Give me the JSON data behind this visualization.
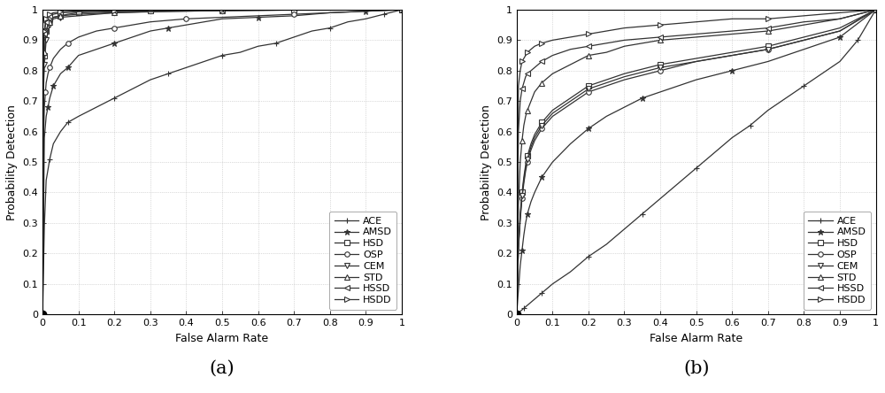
{
  "labels": [
    "ACE",
    "AMSD",
    "HSD",
    "OSP",
    "CEM",
    "STD",
    "HSSD",
    "HSDD"
  ],
  "markers": [
    "+",
    "*",
    "s",
    "o",
    "v",
    "^",
    "<",
    ">"
  ],
  "color": "#333333",
  "xlabel": "False Alarm Rate",
  "ylabel": "Probability Detection",
  "subplot_labels": [
    "(a)",
    "(b)"
  ],
  "figure_size": [
    10.0,
    4.44
  ],
  "dpi": 100,
  "plot_a": {
    "ACE": {
      "x": [
        0,
        0.005,
        0.01,
        0.02,
        0.03,
        0.05,
        0.07,
        0.1,
        0.15,
        0.2,
        0.25,
        0.3,
        0.35,
        0.4,
        0.45,
        0.5,
        0.55,
        0.6,
        0.65,
        0.7,
        0.75,
        0.8,
        0.85,
        0.9,
        0.95,
        1.0
      ],
      "y": [
        0,
        0.29,
        0.44,
        0.51,
        0.56,
        0.6,
        0.63,
        0.65,
        0.68,
        0.71,
        0.74,
        0.77,
        0.79,
        0.81,
        0.83,
        0.85,
        0.86,
        0.88,
        0.89,
        0.91,
        0.93,
        0.94,
        0.96,
        0.97,
        0.985,
        1.0
      ]
    },
    "AMSD": {
      "x": [
        0,
        0.005,
        0.01,
        0.015,
        0.02,
        0.025,
        0.03,
        0.04,
        0.05,
        0.07,
        0.1,
        0.15,
        0.2,
        0.25,
        0.3,
        0.35,
        0.4,
        0.5,
        0.6,
        0.7,
        0.8,
        0.9,
        1.0
      ],
      "y": [
        0,
        0.58,
        0.65,
        0.68,
        0.71,
        0.73,
        0.75,
        0.77,
        0.79,
        0.81,
        0.85,
        0.87,
        0.89,
        0.91,
        0.93,
        0.94,
        0.95,
        0.97,
        0.975,
        0.98,
        0.99,
        0.995,
        1.0
      ]
    },
    "HSD": {
      "x": [
        0,
        0.003,
        0.005,
        0.008,
        0.01,
        0.015,
        0.02,
        0.03,
        0.05,
        0.07,
        0.1,
        0.2,
        0.3,
        0.5,
        0.7,
        1.0
      ],
      "y": [
        0,
        0.78,
        0.85,
        0.9,
        0.93,
        0.95,
        0.97,
        0.975,
        0.98,
        0.985,
        0.99,
        0.993,
        0.996,
        0.998,
        0.999,
        1.0
      ]
    },
    "OSP": {
      "x": [
        0,
        0.003,
        0.005,
        0.008,
        0.01,
        0.015,
        0.02,
        0.03,
        0.05,
        0.07,
        0.1,
        0.15,
        0.2,
        0.25,
        0.3,
        0.4,
        0.5,
        0.6,
        0.7,
        0.8,
        0.9,
        1.0
      ],
      "y": [
        0,
        0.59,
        0.68,
        0.73,
        0.76,
        0.79,
        0.81,
        0.84,
        0.87,
        0.89,
        0.91,
        0.93,
        0.94,
        0.95,
        0.96,
        0.97,
        0.975,
        0.98,
        0.985,
        0.99,
        0.995,
        1.0
      ]
    },
    "CEM": {
      "x": [
        0,
        0.003,
        0.005,
        0.008,
        0.01,
        0.015,
        0.02,
        0.03,
        0.05,
        0.1,
        0.2,
        0.3,
        0.5,
        0.7,
        1.0
      ],
      "y": [
        0,
        0.75,
        0.82,
        0.87,
        0.9,
        0.93,
        0.95,
        0.97,
        0.975,
        0.98,
        0.99,
        0.993,
        0.997,
        0.999,
        1.0
      ]
    },
    "STD": {
      "x": [
        0,
        0.003,
        0.005,
        0.008,
        0.01,
        0.015,
        0.02,
        0.03,
        0.05,
        0.1,
        0.2,
        0.3,
        0.5,
        0.7,
        1.0
      ],
      "y": [
        0,
        0.79,
        0.86,
        0.9,
        0.93,
        0.95,
        0.96,
        0.975,
        0.98,
        0.985,
        0.99,
        0.994,
        0.997,
        0.999,
        1.0
      ]
    },
    "HSSD": {
      "x": [
        0,
        0.003,
        0.005,
        0.008,
        0.01,
        0.015,
        0.02,
        0.03,
        0.05,
        0.1,
        0.2,
        0.3,
        0.5,
        0.7,
        1.0
      ],
      "y": [
        0,
        0.87,
        0.92,
        0.95,
        0.96,
        0.975,
        0.98,
        0.985,
        0.99,
        0.993,
        0.996,
        0.998,
        0.999,
        0.9995,
        1.0
      ]
    },
    "HSDD": {
      "x": [
        0,
        0.003,
        0.005,
        0.008,
        0.01,
        0.015,
        0.02,
        0.03,
        0.05,
        0.1,
        0.2,
        0.3,
        0.5,
        0.7,
        1.0
      ],
      "y": [
        0,
        0.89,
        0.93,
        0.96,
        0.97,
        0.98,
        0.985,
        0.99,
        0.993,
        0.996,
        0.998,
        0.999,
        0.9995,
        0.9998,
        1.0
      ]
    }
  },
  "plot_b": {
    "ACE": {
      "x": [
        0,
        0.005,
        0.01,
        0.02,
        0.03,
        0.05,
        0.07,
        0.1,
        0.15,
        0.2,
        0.25,
        0.3,
        0.35,
        0.4,
        0.45,
        0.5,
        0.55,
        0.6,
        0.65,
        0.7,
        0.75,
        0.8,
        0.85,
        0.9,
        0.95,
        1.0
      ],
      "y": [
        0,
        0.005,
        0.01,
        0.02,
        0.03,
        0.05,
        0.07,
        0.1,
        0.14,
        0.19,
        0.23,
        0.28,
        0.33,
        0.38,
        0.43,
        0.48,
        0.53,
        0.58,
        0.62,
        0.67,
        0.71,
        0.75,
        0.79,
        0.83,
        0.9,
        1.0
      ]
    },
    "AMSD": {
      "x": [
        0,
        0.005,
        0.01,
        0.015,
        0.02,
        0.025,
        0.03,
        0.04,
        0.05,
        0.07,
        0.1,
        0.15,
        0.2,
        0.25,
        0.3,
        0.35,
        0.4,
        0.5,
        0.6,
        0.7,
        0.8,
        0.9,
        1.0
      ],
      "y": [
        0,
        0.08,
        0.16,
        0.21,
        0.26,
        0.3,
        0.33,
        0.37,
        0.4,
        0.45,
        0.5,
        0.56,
        0.61,
        0.65,
        0.68,
        0.71,
        0.73,
        0.77,
        0.8,
        0.83,
        0.87,
        0.91,
        1.0
      ]
    },
    "HSD": {
      "x": [
        0,
        0.005,
        0.01,
        0.015,
        0.02,
        0.025,
        0.03,
        0.04,
        0.05,
        0.07,
        0.1,
        0.15,
        0.2,
        0.25,
        0.3,
        0.4,
        0.5,
        0.6,
        0.7,
        0.8,
        0.9,
        1.0
      ],
      "y": [
        0,
        0.22,
        0.33,
        0.4,
        0.45,
        0.49,
        0.52,
        0.56,
        0.59,
        0.63,
        0.67,
        0.71,
        0.75,
        0.77,
        0.79,
        0.82,
        0.84,
        0.86,
        0.88,
        0.91,
        0.94,
        1.0
      ]
    },
    "OSP": {
      "x": [
        0,
        0.005,
        0.01,
        0.015,
        0.02,
        0.025,
        0.03,
        0.04,
        0.05,
        0.07,
        0.1,
        0.15,
        0.2,
        0.25,
        0.3,
        0.4,
        0.5,
        0.6,
        0.7,
        0.8,
        0.9,
        1.0
      ],
      "y": [
        0,
        0.21,
        0.31,
        0.38,
        0.43,
        0.47,
        0.5,
        0.54,
        0.57,
        0.61,
        0.65,
        0.69,
        0.73,
        0.75,
        0.77,
        0.8,
        0.83,
        0.85,
        0.87,
        0.9,
        0.93,
        1.0
      ]
    },
    "CEM": {
      "x": [
        0,
        0.005,
        0.01,
        0.015,
        0.02,
        0.025,
        0.03,
        0.04,
        0.05,
        0.07,
        0.1,
        0.15,
        0.2,
        0.25,
        0.3,
        0.4,
        0.5,
        0.6,
        0.7,
        0.8,
        0.9,
        1.0
      ],
      "y": [
        0,
        0.22,
        0.32,
        0.39,
        0.44,
        0.48,
        0.51,
        0.55,
        0.58,
        0.62,
        0.66,
        0.7,
        0.74,
        0.76,
        0.78,
        0.81,
        0.83,
        0.85,
        0.87,
        0.9,
        0.93,
        1.0
      ]
    },
    "STD": {
      "x": [
        0,
        0.005,
        0.01,
        0.015,
        0.02,
        0.025,
        0.03,
        0.04,
        0.05,
        0.07,
        0.1,
        0.15,
        0.2,
        0.25,
        0.3,
        0.4,
        0.5,
        0.6,
        0.7,
        0.8,
        0.9,
        1.0
      ],
      "y": [
        0,
        0.36,
        0.5,
        0.57,
        0.62,
        0.65,
        0.67,
        0.7,
        0.73,
        0.76,
        0.79,
        0.82,
        0.85,
        0.86,
        0.88,
        0.9,
        0.91,
        0.92,
        0.93,
        0.95,
        0.97,
        1.0
      ]
    },
    "HSSD": {
      "x": [
        0,
        0.005,
        0.01,
        0.015,
        0.02,
        0.025,
        0.03,
        0.04,
        0.05,
        0.07,
        0.1,
        0.15,
        0.2,
        0.25,
        0.3,
        0.4,
        0.5,
        0.6,
        0.7,
        0.8,
        0.9,
        1.0
      ],
      "y": [
        0,
        0.6,
        0.7,
        0.74,
        0.76,
        0.78,
        0.79,
        0.8,
        0.81,
        0.83,
        0.85,
        0.87,
        0.88,
        0.89,
        0.9,
        0.91,
        0.92,
        0.93,
        0.94,
        0.96,
        0.97,
        1.0
      ]
    },
    "HSDD": {
      "x": [
        0,
        0.005,
        0.01,
        0.015,
        0.02,
        0.025,
        0.03,
        0.04,
        0.05,
        0.07,
        0.1,
        0.15,
        0.2,
        0.25,
        0.3,
        0.4,
        0.5,
        0.6,
        0.7,
        0.8,
        0.9,
        1.0
      ],
      "y": [
        0,
        0.75,
        0.8,
        0.83,
        0.84,
        0.85,
        0.86,
        0.87,
        0.88,
        0.89,
        0.9,
        0.91,
        0.92,
        0.93,
        0.94,
        0.95,
        0.96,
        0.97,
        0.97,
        0.98,
        0.99,
        1.0
      ]
    }
  },
  "line_width": 0.9,
  "tick_fontsize": 8,
  "label_fontsize": 9,
  "legend_fontsize": 8,
  "subplot_label_fontsize": 15,
  "marker_size": 4,
  "marker_size_plus": 5,
  "marker_size_star": 5
}
